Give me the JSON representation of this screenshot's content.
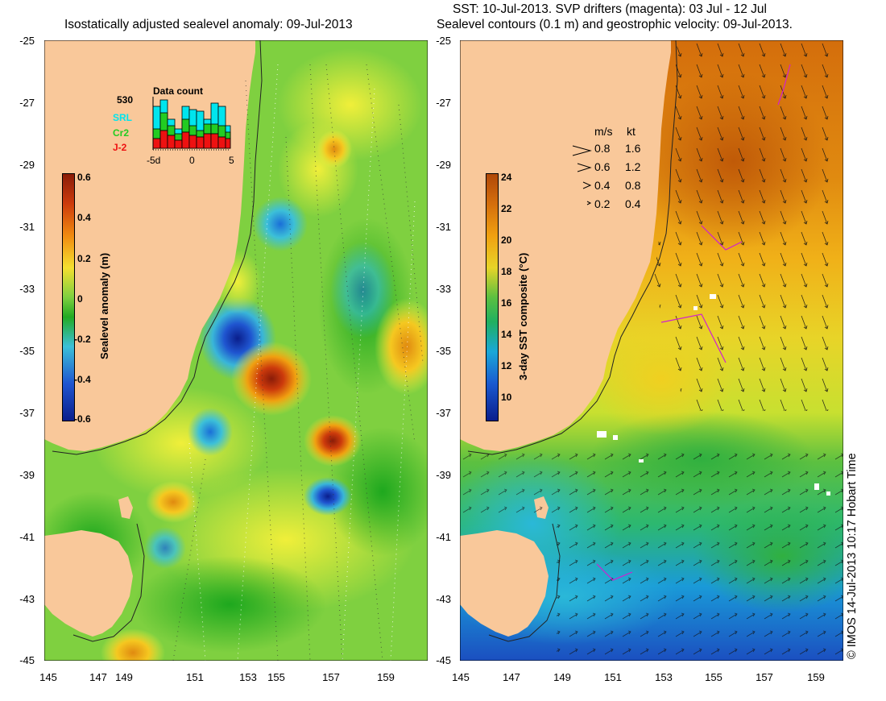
{
  "left": {
    "title": "Isostatically adjusted sealevel anomaly: 09-Jul-2013",
    "colorbar_label": "Sealevel anomaly (m)",
    "colorbar_ticks": [
      "0.6",
      "0.4",
      "0.2",
      "0",
      "-0.2",
      "-0.4",
      "-0.6"
    ],
    "data_count": {
      "title": "Data count",
      "total": "530",
      "sources": [
        {
          "name": "SRL",
          "color": "#00e5ee"
        },
        {
          "name": "Cr2",
          "color": "#22cc22"
        },
        {
          "name": "J-2",
          "color": "#ee1111"
        }
      ],
      "x_ticks": [
        "-5d",
        "0",
        "5"
      ]
    }
  },
  "right": {
    "title_line1": "SST: 10-Jul-2013. SVP drifters (magenta): 03 Jul - 12 Jul",
    "title_line2": "Sealevel contours (0.1 m) and geostrophic velocity: 09-Jul-2013.",
    "colorbar_label": "3-day SST composite (°C)",
    "colorbar_ticks": [
      "24",
      "22",
      "20",
      "18",
      "16",
      "14",
      "12",
      "10"
    ],
    "velocity_legend": {
      "header_ms": "m/s",
      "header_kt": "kt",
      "rows": [
        {
          "ms": "0.8",
          "kt": "1.6"
        },
        {
          "ms": "0.6",
          "kt": "1.2"
        },
        {
          "ms": "0.4",
          "kt": "0.8"
        },
        {
          "ms": "0.2",
          "kt": "0.4"
        }
      ]
    },
    "credit": "© IMOS 14-Jul-2013 10:17 Hobart Time"
  },
  "axes": {
    "y_ticks": [
      "-25",
      "-27",
      "-29",
      "-31",
      "-33",
      "-35",
      "-37",
      "-39",
      "-41",
      "-43",
      "-45"
    ],
    "x_ticks": [
      "145",
      "147",
      "149",
      "151",
      "153",
      "155",
      "157",
      "159"
    ]
  },
  "colors": {
    "land": "#f9c89a",
    "anomaly_positive": "#e07a10",
    "anomaly_negative": "#1a3fc8",
    "sst_warm": "#d9780e",
    "sst_cool": "#22b4d8",
    "drifters": "#d020d0"
  }
}
